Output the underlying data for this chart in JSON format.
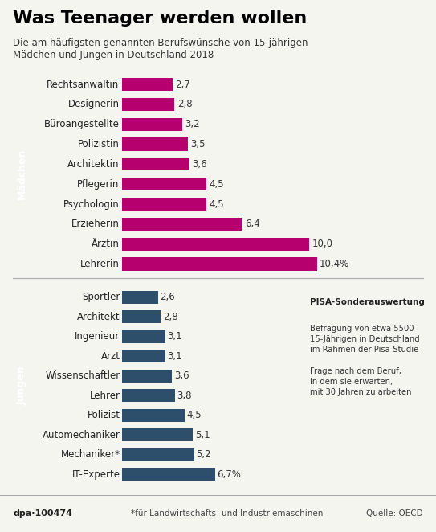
{
  "title": "Was Teenager werden wollen",
  "subtitle": "Die am häufigsten genannten Berufswünsche von 15-jährigen\nMädchen und Jungen in Deutschland 2018",
  "girls_labels": [
    "Lehrerin",
    "Ärztin",
    "Erzieherin",
    "Psychologin",
    "Pflegerin",
    "Architektin",
    "Polizistin",
    "Büroangestellte",
    "Designerin",
    "Rechtsanwältin"
  ],
  "girls_values": [
    10.4,
    10.0,
    6.4,
    4.5,
    4.5,
    3.6,
    3.5,
    3.2,
    2.8,
    2.7
  ],
  "girls_value_labels": [
    "10,4%",
    "10,0",
    "6,4",
    "4,5",
    "4,5",
    "3,6",
    "3,5",
    "3,2",
    "2,8",
    "2,7"
  ],
  "boys_labels": [
    "IT-Experte",
    "Mechaniker*",
    "Automechaniker",
    "Polizist",
    "Lehrer",
    "Wissenschaftler",
    "Arzt",
    "Ingenieur",
    "Architekt",
    "Sportler"
  ],
  "boys_values": [
    6.7,
    5.2,
    5.1,
    4.5,
    3.8,
    3.6,
    3.1,
    3.1,
    2.8,
    2.6
  ],
  "boys_value_labels": [
    "6,7%",
    "5,2",
    "5,1",
    "4,5",
    "3,8",
    "3,6",
    "3,1",
    "3,1",
    "2,8",
    "2,6"
  ],
  "girls_color": "#b5006e",
  "boys_color": "#2e4f6b",
  "girls_section_color": "#8b1a6b",
  "boys_section_color": "#2e4f6b",
  "girls_section_label": "Mädchen",
  "boys_section_label": "Jungen",
  "annotation_title": "PISA-Sonderauswertung",
  "annotation_text": "Befragung von etwa 5500\n15-Jährigen in Deutschland\nim Rahmen der Pisa-Studie\n\nFrage nach dem Beruf,\nin dem sie erwarten,\nmit 30 Jahren zu arbeiten",
  "footer_left": "dpa·100474",
  "footer_mid": "*für Landwirtschafts- und Industriemaschinen",
  "footer_right": "Quelle: OECD",
  "bg_color": "#f5f5f0",
  "bar_height": 0.65
}
